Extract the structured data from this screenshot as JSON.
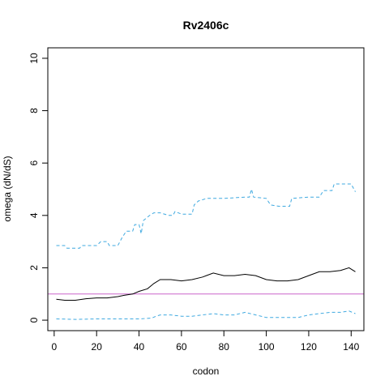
{
  "chart_data": {
    "type": "line",
    "title": "Rv2406c",
    "xlabel": "codon",
    "ylabel": "omega (dN/dS)",
    "xlim": [
      -3,
      146
    ],
    "ylim": [
      -0.4,
      10.4
    ],
    "xticks": [
      0,
      20,
      40,
      60,
      80,
      100,
      120,
      140
    ],
    "yticks": [
      0,
      2,
      4,
      6,
      8,
      10
    ],
    "grid": false,
    "reference_line": {
      "y": 1,
      "color": "#cc66cc"
    },
    "series": [
      {
        "role": "upper",
        "color": "#3fa9e0",
        "dash": true,
        "points": [
          [
            1,
            2.85
          ],
          [
            5,
            2.85
          ],
          [
            6,
            2.75
          ],
          [
            12,
            2.75
          ],
          [
            13,
            2.85
          ],
          [
            20,
            2.85
          ],
          [
            22,
            3.0
          ],
          [
            25,
            3.0
          ],
          [
            26,
            2.85
          ],
          [
            30,
            2.85
          ],
          [
            32,
            3.15
          ],
          [
            34,
            3.4
          ],
          [
            37,
            3.4
          ],
          [
            38,
            3.65
          ],
          [
            40,
            3.65
          ],
          [
            41,
            3.3
          ],
          [
            42,
            3.8
          ],
          [
            45,
            4.0
          ],
          [
            47,
            4.1
          ],
          [
            50,
            4.1
          ],
          [
            54,
            4.0
          ],
          [
            56,
            4.0
          ],
          [
            57,
            4.15
          ],
          [
            60,
            4.05
          ],
          [
            65,
            4.05
          ],
          [
            66,
            4.4
          ],
          [
            68,
            4.55
          ],
          [
            72,
            4.65
          ],
          [
            80,
            4.65
          ],
          [
            90,
            4.7
          ],
          [
            92,
            4.7
          ],
          [
            93,
            5.0
          ],
          [
            94,
            4.7
          ],
          [
            100,
            4.65
          ],
          [
            102,
            4.4
          ],
          [
            106,
            4.35
          ],
          [
            111,
            4.35
          ],
          [
            112,
            4.65
          ],
          [
            120,
            4.7
          ],
          [
            125,
            4.7
          ],
          [
            127,
            4.95
          ],
          [
            131,
            4.95
          ],
          [
            132,
            5.2
          ],
          [
            140,
            5.2
          ],
          [
            142,
            4.9
          ]
        ]
      },
      {
        "role": "estimate",
        "color": "#000000",
        "dash": false,
        "points": [
          [
            1,
            0.8
          ],
          [
            5,
            0.76
          ],
          [
            10,
            0.76
          ],
          [
            15,
            0.82
          ],
          [
            20,
            0.85
          ],
          [
            25,
            0.85
          ],
          [
            30,
            0.9
          ],
          [
            33,
            0.95
          ],
          [
            37,
            1.0
          ],
          [
            40,
            1.1
          ],
          [
            44,
            1.2
          ],
          [
            47,
            1.4
          ],
          [
            50,
            1.55
          ],
          [
            55,
            1.55
          ],
          [
            60,
            1.5
          ],
          [
            65,
            1.55
          ],
          [
            70,
            1.65
          ],
          [
            75,
            1.8
          ],
          [
            80,
            1.7
          ],
          [
            85,
            1.7
          ],
          [
            90,
            1.75
          ],
          [
            95,
            1.7
          ],
          [
            100,
            1.55
          ],
          [
            105,
            1.5
          ],
          [
            110,
            1.5
          ],
          [
            115,
            1.55
          ],
          [
            120,
            1.7
          ],
          [
            125,
            1.85
          ],
          [
            130,
            1.85
          ],
          [
            135,
            1.9
          ],
          [
            139,
            2.0
          ],
          [
            142,
            1.85
          ]
        ]
      },
      {
        "role": "lower",
        "color": "#3fa9e0",
        "dash": true,
        "points": [
          [
            1,
            0.05
          ],
          [
            10,
            0.03
          ],
          [
            20,
            0.05
          ],
          [
            30,
            0.05
          ],
          [
            40,
            0.05
          ],
          [
            46,
            0.08
          ],
          [
            48,
            0.15
          ],
          [
            50,
            0.2
          ],
          [
            55,
            0.2
          ],
          [
            60,
            0.15
          ],
          [
            65,
            0.15
          ],
          [
            70,
            0.2
          ],
          [
            75,
            0.25
          ],
          [
            80,
            0.2
          ],
          [
            85,
            0.2
          ],
          [
            90,
            0.3
          ],
          [
            95,
            0.2
          ],
          [
            100,
            0.1
          ],
          [
            110,
            0.1
          ],
          [
            115,
            0.1
          ],
          [
            120,
            0.2
          ],
          [
            125,
            0.25
          ],
          [
            130,
            0.3
          ],
          [
            135,
            0.3
          ],
          [
            139,
            0.35
          ],
          [
            142,
            0.25
          ]
        ]
      }
    ]
  }
}
